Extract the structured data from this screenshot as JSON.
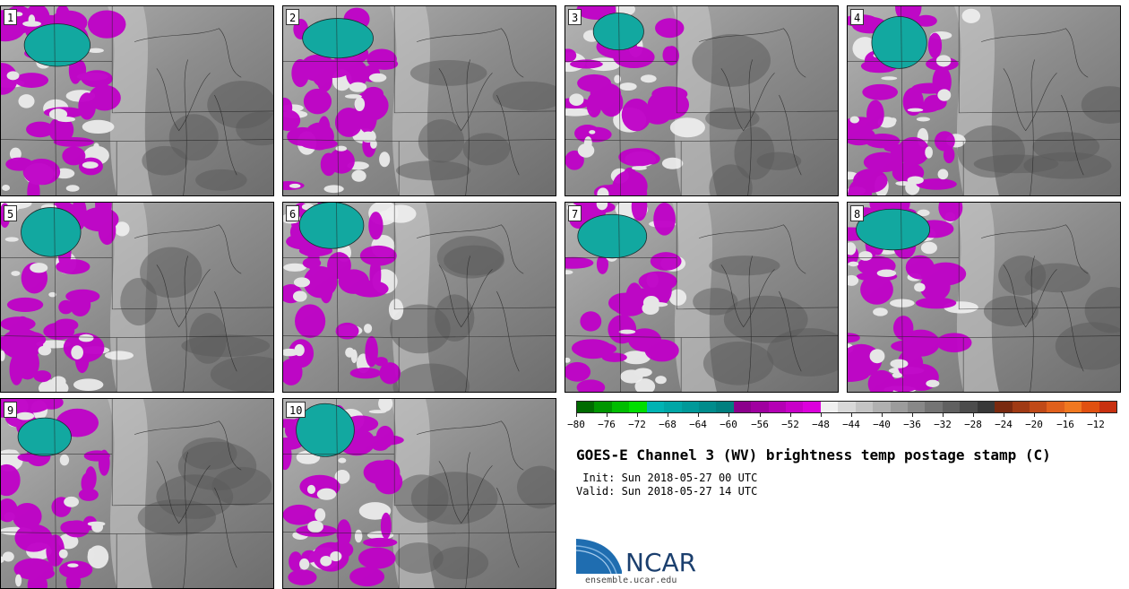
{
  "panels": [
    {
      "label": "1"
    },
    {
      "label": "2"
    },
    {
      "label": "3"
    },
    {
      "label": "4"
    },
    {
      "label": "5"
    },
    {
      "label": "6"
    },
    {
      "label": "7"
    },
    {
      "label": "8"
    },
    {
      "label": "9"
    },
    {
      "label": "10"
    }
  ],
  "legend": {
    "colors": [
      "#006b00",
      "#009600",
      "#00bd00",
      "#00de00",
      "#00b3b3",
      "#00a6a6",
      "#009999",
      "#008c8c",
      "#007f7f",
      "#8c008c",
      "#a000a0",
      "#b400b4",
      "#c800c8",
      "#dc00dc",
      "#f0f0f0",
      "#d8d8d8",
      "#c4c4c4",
      "#b0b0b0",
      "#9c9c9c",
      "#888888",
      "#747474",
      "#606060",
      "#4c4c4c",
      "#383838",
      "#7a2a10",
      "#a03a14",
      "#c04a18",
      "#e0601c",
      "#f07820",
      "#e05010",
      "#c83010"
    ],
    "tick_labels": [
      "-80",
      "-76",
      "-72",
      "-68",
      "-64",
      "-60",
      "-56",
      "-52",
      "-48",
      "-44",
      "-40",
      "-36",
      "-32",
      "-28",
      "-24",
      "-20",
      "-16",
      "-12"
    ]
  },
  "title": "GOES-E Channel 3 (WV) brightness temp postage stamp (C)",
  "init": " Init: Sun 2018-05-27 00 UTC",
  "valid": "Valid: Sun 2018-05-27 14 UTC",
  "logo": {
    "name": "NCAR",
    "url": "ensemble.ucar.edu"
  }
}
